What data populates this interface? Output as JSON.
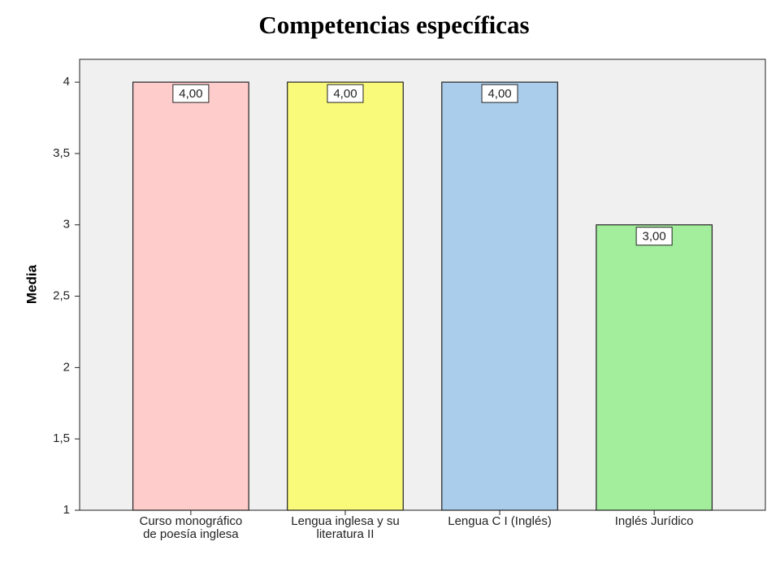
{
  "chart_data": {
    "type": "bar",
    "title": "Competencias específicas",
    "y_label": "Media",
    "categories": [
      "Curso monográfico\nde poesía inglesa",
      "Lengua inglesa y su\nliteratura II",
      "Lengua C I (Inglés)",
      "Inglés Jurídico"
    ],
    "values": [
      4,
      4,
      4,
      3
    ],
    "value_labels": [
      "4,00",
      "4,00",
      "4,00",
      "3,00"
    ],
    "colors": [
      "#ffcccc",
      "#f9f97a",
      "#abcdec",
      "#a3ee9d"
    ],
    "ylim": [
      1,
      4.16
    ],
    "yticks": [
      1,
      {
        "value": 1.5,
        "label": "1,5"
      },
      2,
      {
        "value": 2.5,
        "label": "2,5"
      },
      3,
      {
        "value": 3.5,
        "label": "3,5"
      },
      4
    ]
  }
}
